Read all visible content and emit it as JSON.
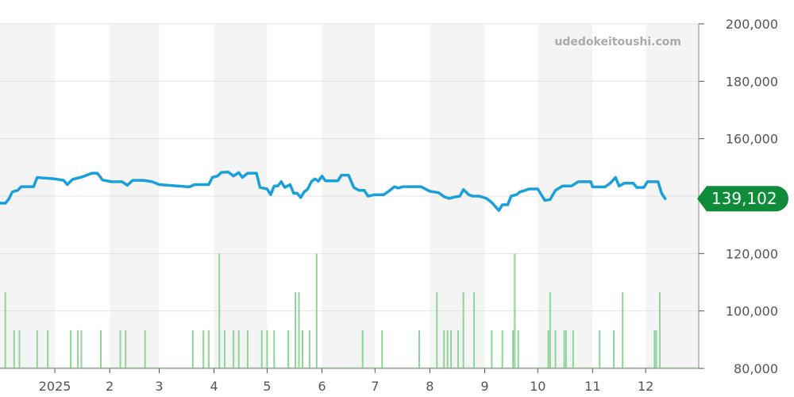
{
  "watermark": "udedokeitoushi.com",
  "current_value_label": "139,102",
  "colors": {
    "price_line": "#1a9fdd",
    "volume_bars": "#8fd39a",
    "badge": "#0e8c3a",
    "band": "#f4f4f4",
    "grid": "#e2e2e2"
  },
  "chart_data": {
    "type": "line",
    "ylim": [
      80000,
      200000
    ],
    "y_ticks": [
      200000,
      180000,
      160000,
      140000,
      120000,
      100000,
      80000
    ],
    "y_tick_labels": [
      "200,000",
      "180,000",
      "160,000",
      "140,000",
      "120,000",
      "100,000",
      "80,000"
    ],
    "x_range": [
      "2024-12-01",
      "2025-12-31"
    ],
    "x_ticks": [
      {
        "date": "2025-01-01",
        "label": "2025"
      },
      {
        "date": "2025-02-01",
        "label": "2"
      },
      {
        "date": "2025-03-01",
        "label": "3"
      },
      {
        "date": "2025-04-01",
        "label": "4"
      },
      {
        "date": "2025-05-01",
        "label": "5"
      },
      {
        "date": "2025-06-01",
        "label": "6"
      },
      {
        "date": "2025-07-01",
        "label": "7"
      },
      {
        "date": "2025-08-01",
        "label": "8"
      },
      {
        "date": "2025-09-01",
        "label": "9"
      },
      {
        "date": "2025-10-01",
        "label": "10"
      },
      {
        "date": "2025-11-01",
        "label": "11"
      },
      {
        "date": "2025-12-01",
        "label": "12"
      }
    ],
    "series": [
      {
        "type": "line",
        "points": [
          [
            "2024-12-01",
            137600
          ],
          [
            "2024-12-04",
            137500
          ],
          [
            "2024-12-06",
            139000
          ],
          [
            "2024-12-08",
            141500
          ],
          [
            "2024-12-11",
            142000
          ],
          [
            "2024-12-13",
            143300
          ],
          [
            "2024-12-20",
            143300
          ],
          [
            "2024-12-22",
            146500
          ],
          [
            "2024-12-26",
            146300
          ],
          [
            "2025-01-01",
            146000
          ],
          [
            "2025-01-06",
            145500
          ],
          [
            "2025-01-08",
            144000
          ],
          [
            "2025-01-11",
            145800
          ],
          [
            "2025-01-17",
            146800
          ],
          [
            "2025-01-22",
            148000
          ],
          [
            "2025-01-25",
            148000
          ],
          [
            "2025-01-28",
            145600
          ],
          [
            "2025-02-02",
            145000
          ],
          [
            "2025-02-08",
            145000
          ],
          [
            "2025-02-11",
            143800
          ],
          [
            "2025-02-14",
            145500
          ],
          [
            "2025-02-20",
            145500
          ],
          [
            "2025-02-25",
            145000
          ],
          [
            "2025-03-01",
            144000
          ],
          [
            "2025-03-10",
            143600
          ],
          [
            "2025-03-18",
            143200
          ],
          [
            "2025-03-21",
            144000
          ],
          [
            "2025-03-29",
            144000
          ],
          [
            "2025-03-31",
            146500
          ],
          [
            "2025-04-03",
            147000
          ],
          [
            "2025-04-05",
            148200
          ],
          [
            "2025-04-09",
            148400
          ],
          [
            "2025-04-12",
            147000
          ],
          [
            "2025-04-15",
            148200
          ],
          [
            "2025-04-17",
            146500
          ],
          [
            "2025-04-20",
            148000
          ],
          [
            "2025-04-25",
            148000
          ],
          [
            "2025-04-27",
            143000
          ],
          [
            "2025-05-01",
            142500
          ],
          [
            "2025-05-03",
            140500
          ],
          [
            "2025-05-05",
            143500
          ],
          [
            "2025-05-07",
            143500
          ],
          [
            "2025-05-09",
            145000
          ],
          [
            "2025-05-11",
            143000
          ],
          [
            "2025-05-14",
            144000
          ],
          [
            "2025-05-16",
            141000
          ],
          [
            "2025-05-18",
            141000
          ],
          [
            "2025-05-20",
            139500
          ],
          [
            "2025-05-22",
            141500
          ],
          [
            "2025-05-24",
            142500
          ],
          [
            "2025-05-26",
            145000
          ],
          [
            "2025-05-28",
            146000
          ],
          [
            "2025-05-30",
            145200
          ],
          [
            "2025-06-01",
            147000
          ],
          [
            "2025-06-03",
            145300
          ],
          [
            "2025-06-10",
            145300
          ],
          [
            "2025-06-12",
            147300
          ],
          [
            "2025-06-16",
            147300
          ],
          [
            "2025-06-19",
            143000
          ],
          [
            "2025-06-22",
            142000
          ],
          [
            "2025-06-25",
            142000
          ],
          [
            "2025-06-27",
            140000
          ],
          [
            "2025-07-01",
            140500
          ],
          [
            "2025-07-06",
            140500
          ],
          [
            "2025-07-09",
            141800
          ],
          [
            "2025-07-12",
            143300
          ],
          [
            "2025-07-14",
            142800
          ],
          [
            "2025-07-17",
            143300
          ],
          [
            "2025-07-27",
            143300
          ],
          [
            "2025-08-01",
            141700
          ],
          [
            "2025-08-06",
            141200
          ],
          [
            "2025-08-09",
            139800
          ],
          [
            "2025-08-12",
            139200
          ],
          [
            "2025-08-15",
            139700
          ],
          [
            "2025-08-18",
            140000
          ],
          [
            "2025-08-20",
            142300
          ],
          [
            "2025-08-23",
            140500
          ],
          [
            "2025-08-25",
            140000
          ],
          [
            "2025-08-29",
            140000
          ],
          [
            "2025-09-02",
            139200
          ],
          [
            "2025-09-05",
            137800
          ],
          [
            "2025-09-09",
            135000
          ],
          [
            "2025-09-11",
            137000
          ],
          [
            "2025-09-14",
            137000
          ],
          [
            "2025-09-16",
            140000
          ],
          [
            "2025-09-19",
            140500
          ],
          [
            "2025-09-21",
            141500
          ],
          [
            "2025-09-24",
            142000
          ],
          [
            "2025-09-26",
            142500
          ],
          [
            "2025-10-01",
            142500
          ],
          [
            "2025-10-05",
            138500
          ],
          [
            "2025-10-08",
            138800
          ],
          [
            "2025-10-11",
            142000
          ],
          [
            "2025-10-15",
            143500
          ],
          [
            "2025-10-20",
            143500
          ],
          [
            "2025-10-24",
            145000
          ],
          [
            "2025-10-31",
            145000
          ],
          [
            "2025-11-01",
            143200
          ],
          [
            "2025-11-08",
            143200
          ],
          [
            "2025-11-11",
            144500
          ],
          [
            "2025-11-14",
            146500
          ],
          [
            "2025-11-16",
            143500
          ],
          [
            "2025-11-19",
            144500
          ],
          [
            "2025-11-24",
            144500
          ],
          [
            "2025-11-26",
            143000
          ],
          [
            "2025-11-30",
            143000
          ],
          [
            "2025-12-02",
            145000
          ],
          [
            "2025-12-08",
            145000
          ],
          [
            "2025-12-10",
            141000
          ],
          [
            "2025-12-12",
            139102
          ]
        ]
      },
      {
        "type": "bar",
        "bars": [
          [
            "2024-12-04",
            106500
          ],
          [
            "2024-12-09",
            93300
          ],
          [
            "2024-12-12",
            93300
          ],
          [
            "2024-12-22",
            93300
          ],
          [
            "2024-12-28",
            93300
          ],
          [
            "2025-01-10",
            93300
          ],
          [
            "2025-01-14",
            93300
          ],
          [
            "2025-01-16",
            93300
          ],
          [
            "2025-01-27",
            93300
          ],
          [
            "2025-02-07",
            93300
          ],
          [
            "2025-02-10",
            93300
          ],
          [
            "2025-02-21",
            93300
          ],
          [
            "2025-03-20",
            93300
          ],
          [
            "2025-03-26",
            93300
          ],
          [
            "2025-03-29",
            93300
          ],
          [
            "2025-04-04",
            120000
          ],
          [
            "2025-04-07",
            93300
          ],
          [
            "2025-04-12",
            93300
          ],
          [
            "2025-04-15",
            93300
          ],
          [
            "2025-04-20",
            93300
          ],
          [
            "2025-04-28",
            93300
          ],
          [
            "2025-05-01",
            93300
          ],
          [
            "2025-05-05",
            93300
          ],
          [
            "2025-05-13",
            93300
          ],
          [
            "2025-05-17",
            106500
          ],
          [
            "2025-05-19",
            106500
          ],
          [
            "2025-05-21",
            93300
          ],
          [
            "2025-05-25",
            93300
          ],
          [
            "2025-05-29",
            120000
          ],
          [
            "2025-06-24",
            93300
          ],
          [
            "2025-07-05",
            93300
          ],
          [
            "2025-07-26",
            93300
          ],
          [
            "2025-08-05",
            106500
          ],
          [
            "2025-08-09",
            93300
          ],
          [
            "2025-08-11",
            93300
          ],
          [
            "2025-08-13",
            93300
          ],
          [
            "2025-08-17",
            93300
          ],
          [
            "2025-08-20",
            106500
          ],
          [
            "2025-08-26",
            106500
          ],
          [
            "2025-09-05",
            93300
          ],
          [
            "2025-09-11",
            93300
          ],
          [
            "2025-09-17",
            93300
          ],
          [
            "2025-09-18",
            120000
          ],
          [
            "2025-09-20",
            93300
          ],
          [
            "2025-10-07",
            93300
          ],
          [
            "2025-10-08",
            106500
          ],
          [
            "2025-10-11",
            93300
          ],
          [
            "2025-10-16",
            93300
          ],
          [
            "2025-10-17",
            93300
          ],
          [
            "2025-10-21",
            93300
          ],
          [
            "2025-11-05",
            93300
          ],
          [
            "2025-11-13",
            93300
          ],
          [
            "2025-11-18",
            106500
          ],
          [
            "2025-12-06",
            93300
          ],
          [
            "2025-12-07",
            93300
          ],
          [
            "2025-12-09",
            106500
          ]
        ]
      }
    ]
  }
}
